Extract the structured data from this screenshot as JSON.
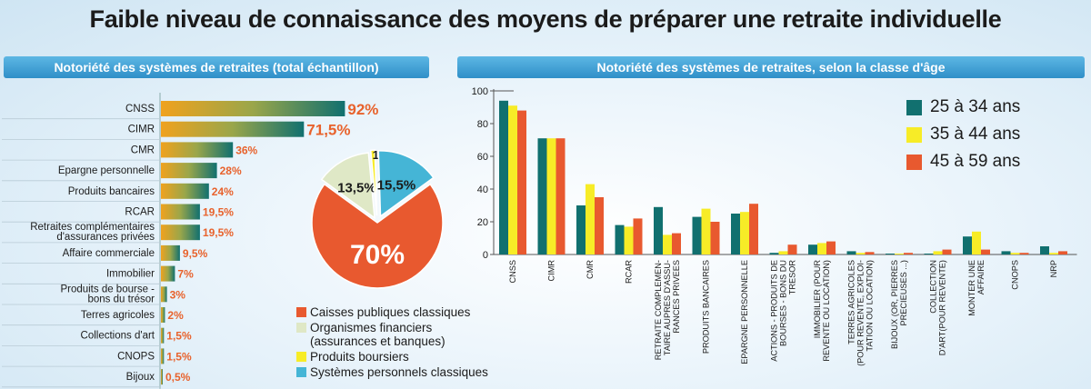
{
  "title": "Faible niveau de connaissance des moyens de préparer une retraite individuelle",
  "colors": {
    "teal": "#11706f",
    "yellow": "#f7ec27",
    "red": "#e8592f",
    "lightblue": "#45b5d6",
    "palegreen": "#dfe8c6"
  },
  "chart_data": [
    {
      "type": "bar",
      "orientation": "horizontal",
      "title": "Notoriété des systèmes de retraites (total échantillon)",
      "categories": [
        "CNSS",
        "CIMR",
        "CMR",
        "Epargne personnelle",
        "Produits bancaires",
        "RCAR",
        "Retraites complémentaires d'assurances privées",
        "Affaire commerciale",
        "Immobilier",
        "Produits de bourse - bons du trésor",
        "Terres agricoles",
        "Collections d'art",
        "CNOPS",
        "Bijoux"
      ],
      "category_lines": [
        [
          "CNSS"
        ],
        [
          "CIMR"
        ],
        [
          "CMR"
        ],
        [
          "Epargne personnelle"
        ],
        [
          "Produits bancaires"
        ],
        [
          "RCAR"
        ],
        [
          "Retraites complémentaires",
          "d'assurances privées"
        ],
        [
          "Affaire commerciale"
        ],
        [
          "Immobilier"
        ],
        [
          "Produits de bourse -",
          "bons du trésor"
        ],
        [
          "Terres agricoles"
        ],
        [
          "Collections d'art"
        ],
        [
          "CNOPS"
        ],
        [
          "Bijoux"
        ]
      ],
      "values": [
        92,
        71.5,
        36,
        28,
        24,
        19.5,
        19.5,
        9.5,
        7,
        3,
        2,
        1.5,
        1.5,
        0.5
      ],
      "value_labels": [
        "92%",
        "71,5%",
        "36%",
        "28%",
        "24%",
        "19,5%",
        "19,5%",
        "9,5%",
        "7%",
        "3%",
        "2%",
        "1,5%",
        "1,5%",
        "0,5%"
      ],
      "xlim": [
        0,
        100
      ]
    },
    {
      "type": "pie",
      "labels": [
        "Caisses publiques classiques",
        "Organismes financiers (assurances et banques)",
        "Produits boursiers",
        "Systèmes personnels classiques"
      ],
      "legend_lines": [
        [
          "Caisses publiques classiques"
        ],
        [
          "Organismes financiers",
          "(assurances et banques)"
        ],
        [
          "Produits boursiers"
        ],
        [
          "Systèmes personnels classiques"
        ]
      ],
      "values": [
        70,
        13.5,
        1,
        15.5
      ],
      "value_labels": [
        "70%",
        "13,5%",
        "1%",
        "15,5%"
      ],
      "legend_position": "bottom"
    },
    {
      "type": "bar",
      "title": "Notoriété des systèmes de retraites, selon la classe d'âge",
      "categories": [
        "CNSS",
        "CIMR",
        "CMR",
        "RCAR",
        "RETRAITE COMPLEMENTAIRE AUPRES D'ASSURANCES PRIVEES",
        "PRODUITS BANCAIRES",
        "EPARGNE PERSONNELLE",
        "ACTIONS - PRODUITS DE BOURSES - BONS DU TRESOR",
        "IMMOBILIER (POUR REVENTE OU LOCATION)",
        "TERRES AGRICOLES (POUR REVENTE, EXPLOITATION OU LOCATION)",
        "BIJOUX (OR, PIERRES PRECIEUSES ...)",
        "COLLECTION D'ART(POUR REVENTE)",
        "MONTER UNE AFFAIRE",
        "CNOPS",
        "NRP"
      ],
      "category_lines": [
        [
          "CNSS"
        ],
        [
          "CIMR"
        ],
        [
          "CMR"
        ],
        [
          "RCAR"
        ],
        [
          "RETRAITE COMPLEMEN-",
          "TAIRE AUPRES D'ASSU-",
          "RANCES PRIVEES"
        ],
        [
          "PRODUITS BANCAIRES"
        ],
        [
          "EPARGNE PERSONNELLE"
        ],
        [
          "ACTIONS - PRODUITS DE",
          "BOURSES - BONS DU",
          "TRESOR"
        ],
        [
          "IMMOBILIER (POUR",
          "REVENTE OU LOCATION)"
        ],
        [
          "TERRES AGRICOLES",
          "(POUR REVENTE, EXPLOI-",
          "TATION OU LOCATION)"
        ],
        [
          "BIJOUX (OR, PIERRES",
          "PRECIEUSES ...)"
        ],
        [
          "COLLECTION",
          "D'ART(POUR REVENTE)"
        ],
        [
          "MONTER UNE",
          "AFFAIRE"
        ],
        [
          "CNOPS"
        ],
        [
          "NRP"
        ]
      ],
      "series": [
        {
          "name": "25 à 34 ans",
          "values": [
            94,
            71,
            30,
            18,
            29,
            23,
            25,
            1,
            6,
            2,
            0.5,
            0.5,
            11,
            2,
            5
          ]
        },
        {
          "name": "35 à 44 ans",
          "values": [
            91,
            71,
            43,
            17,
            12,
            28,
            26,
            2,
            7,
            1,
            0.5,
            2,
            14,
            1,
            1
          ]
        },
        {
          "name": "45 à 59 ans",
          "values": [
            88,
            71,
            35,
            22,
            13,
            20,
            31,
            6,
            8,
            1.5,
            1,
            3,
            3,
            1,
            2
          ]
        }
      ],
      "yticks": [
        0,
        20,
        40,
        60,
        80,
        100
      ],
      "ylim": [
        0,
        100
      ],
      "legend_position": "top-right"
    }
  ]
}
